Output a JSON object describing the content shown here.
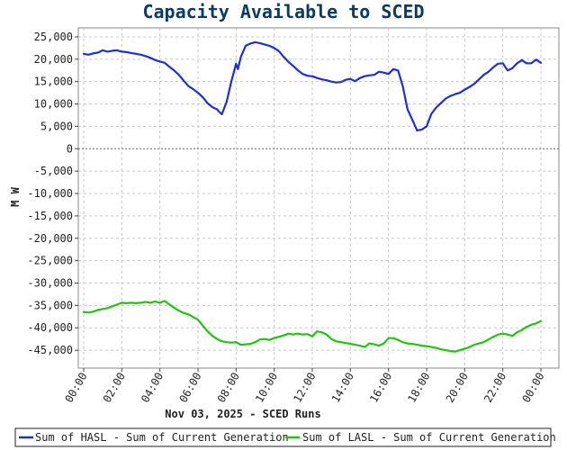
{
  "chart_data": {
    "type": "line",
    "title": "Capacity Available to SCED",
    "xlabel": "Nov 03, 2025 - SCED Runs",
    "ylabel": "M W",
    "xlim": [
      0,
      24
    ],
    "ylim": [
      -49000,
      27000
    ],
    "x_tick_labels": [
      "00:00",
      "02:00",
      "04:00",
      "06:00",
      "08:00",
      "10:00",
      "12:00",
      "14:00",
      "16:00",
      "18:00",
      "20:00",
      "22:00",
      "00:00"
    ],
    "x_tick_values": [
      0,
      2,
      4,
      6,
      8,
      10,
      12,
      14,
      16,
      18,
      20,
      22,
      24
    ],
    "y_tick_labels": [
      "25,000",
      "20,000",
      "15,000",
      "10,000",
      "5,000",
      "0",
      "-5,000",
      "-10,000",
      "-15,000",
      "-20,000",
      "-25,000",
      "-30,000",
      "-35,000",
      "-40,000",
      "-45,000"
    ],
    "y_tick_values": [
      25000,
      20000,
      15000,
      10000,
      5000,
      0,
      -5000,
      -10000,
      -15000,
      -20000,
      -25000,
      -30000,
      -35000,
      -40000,
      -45000
    ],
    "grid": true,
    "legend_position": "bottom",
    "series": [
      {
        "name": "Sum of HASL - Sum of Current Generation",
        "color": "#1f2fd8",
        "x": [
          0,
          0.25,
          0.5,
          0.75,
          1,
          1.25,
          1.5,
          1.75,
          2,
          2.25,
          2.5,
          2.75,
          3,
          3.25,
          3.5,
          3.75,
          4,
          4.25,
          4.5,
          4.75,
          5,
          5.25,
          5.5,
          5.75,
          6,
          6.25,
          6.5,
          6.75,
          7,
          7.1,
          7.25,
          7.5,
          7.75,
          8,
          8.1,
          8.25,
          8.5,
          8.75,
          9,
          9.25,
          9.5,
          9.75,
          10,
          10.25,
          10.5,
          10.75,
          11,
          11.25,
          11.5,
          11.75,
          12,
          12.25,
          12.5,
          12.75,
          13,
          13.25,
          13.5,
          13.75,
          14,
          14.25,
          14.5,
          14.75,
          15,
          15.25,
          15.5,
          15.75,
          16,
          16.25,
          16.5,
          16.75,
          17,
          17.25,
          17.5,
          17.75,
          18,
          18.25,
          18.5,
          18.75,
          19,
          19.25,
          19.5,
          19.75,
          20,
          20.25,
          20.5,
          20.75,
          21,
          21.25,
          21.5,
          21.75,
          22,
          22.25,
          22.5,
          22.75,
          23,
          23.25,
          23.5,
          23.75,
          24
        ],
        "values": [
          21200,
          21000,
          21300,
          21500,
          22000,
          21700,
          21900,
          22000,
          21700,
          21600,
          21400,
          21200,
          21000,
          20700,
          20300,
          19800,
          19500,
          19200,
          18300,
          17500,
          16500,
          15200,
          14000,
          13300,
          12500,
          11500,
          10200,
          9300,
          8800,
          8300,
          7700,
          10500,
          15000,
          19000,
          17800,
          20500,
          23000,
          23500,
          23800,
          23600,
          23300,
          23000,
          22500,
          21800,
          20500,
          19400,
          18500,
          17500,
          16700,
          16300,
          16200,
          15800,
          15500,
          15300,
          15000,
          14800,
          14900,
          15400,
          15600,
          15100,
          15800,
          16200,
          16400,
          16500,
          17200,
          17000,
          16700,
          17800,
          17500,
          14000,
          8800,
          6500,
          4100,
          4300,
          5000,
          7800,
          9200,
          10200,
          11200,
          11800,
          12200,
          12500,
          13200,
          13800,
          14500,
          15500,
          16500,
          17200,
          18200,
          19000,
          19100,
          17500,
          18000,
          19100,
          19800,
          19100,
          19100,
          19900,
          19200
        ]
      },
      {
        "name": "Sum of LASL - Sum of Current Generation",
        "color": "#22c40f",
        "x": [
          0,
          0.25,
          0.5,
          0.75,
          1,
          1.25,
          1.5,
          1.75,
          2,
          2.25,
          2.5,
          2.75,
          3,
          3.25,
          3.5,
          3.75,
          4,
          4.25,
          4.5,
          4.75,
          5,
          5.25,
          5.5,
          5.75,
          6,
          6.25,
          6.5,
          6.75,
          7,
          7.25,
          7.5,
          7.75,
          8,
          8.25,
          8.5,
          8.75,
          9,
          9.25,
          9.5,
          9.75,
          10,
          10.25,
          10.5,
          10.75,
          11,
          11.25,
          11.5,
          11.75,
          12,
          12.25,
          12.5,
          12.75,
          13,
          13.25,
          13.5,
          13.75,
          14,
          14.25,
          14.5,
          14.75,
          15,
          15.25,
          15.5,
          15.75,
          16,
          16.25,
          16.5,
          16.75,
          17,
          17.25,
          17.5,
          17.75,
          18,
          18.25,
          18.5,
          18.75,
          19,
          19.25,
          19.5,
          19.75,
          20,
          20.25,
          20.5,
          20.75,
          21,
          21.25,
          21.5,
          21.75,
          22,
          22.25,
          22.5,
          22.75,
          23,
          23.25,
          23.5,
          23.75,
          24
        ],
        "values": [
          -36500,
          -36600,
          -36400,
          -36000,
          -35800,
          -35600,
          -35200,
          -34800,
          -34400,
          -34500,
          -34400,
          -34500,
          -34400,
          -34200,
          -34400,
          -34100,
          -34400,
          -34000,
          -34800,
          -35500,
          -36200,
          -36700,
          -37000,
          -37600,
          -38200,
          -39500,
          -40800,
          -41800,
          -42500,
          -43000,
          -43200,
          -43300,
          -43200,
          -43800,
          -43700,
          -43600,
          -43200,
          -42600,
          -42500,
          -42700,
          -42300,
          -42000,
          -41700,
          -41300,
          -41500,
          -41300,
          -41500,
          -41400,
          -41900,
          -40800,
          -41000,
          -41500,
          -42500,
          -43000,
          -43200,
          -43400,
          -43600,
          -43800,
          -44000,
          -44300,
          -43500,
          -43700,
          -44000,
          -43500,
          -42300,
          -42300,
          -42700,
          -43200,
          -43500,
          -43600,
          -43800,
          -44000,
          -44100,
          -44300,
          -44500,
          -44800,
          -45000,
          -45200,
          -45300,
          -45000,
          -44700,
          -44300,
          -43800,
          -43500,
          -43200,
          -42600,
          -42000,
          -41500,
          -41300,
          -41500,
          -41800,
          -41000,
          -40500,
          -39800,
          -39300,
          -39000,
          -38500
        ]
      }
    ]
  }
}
